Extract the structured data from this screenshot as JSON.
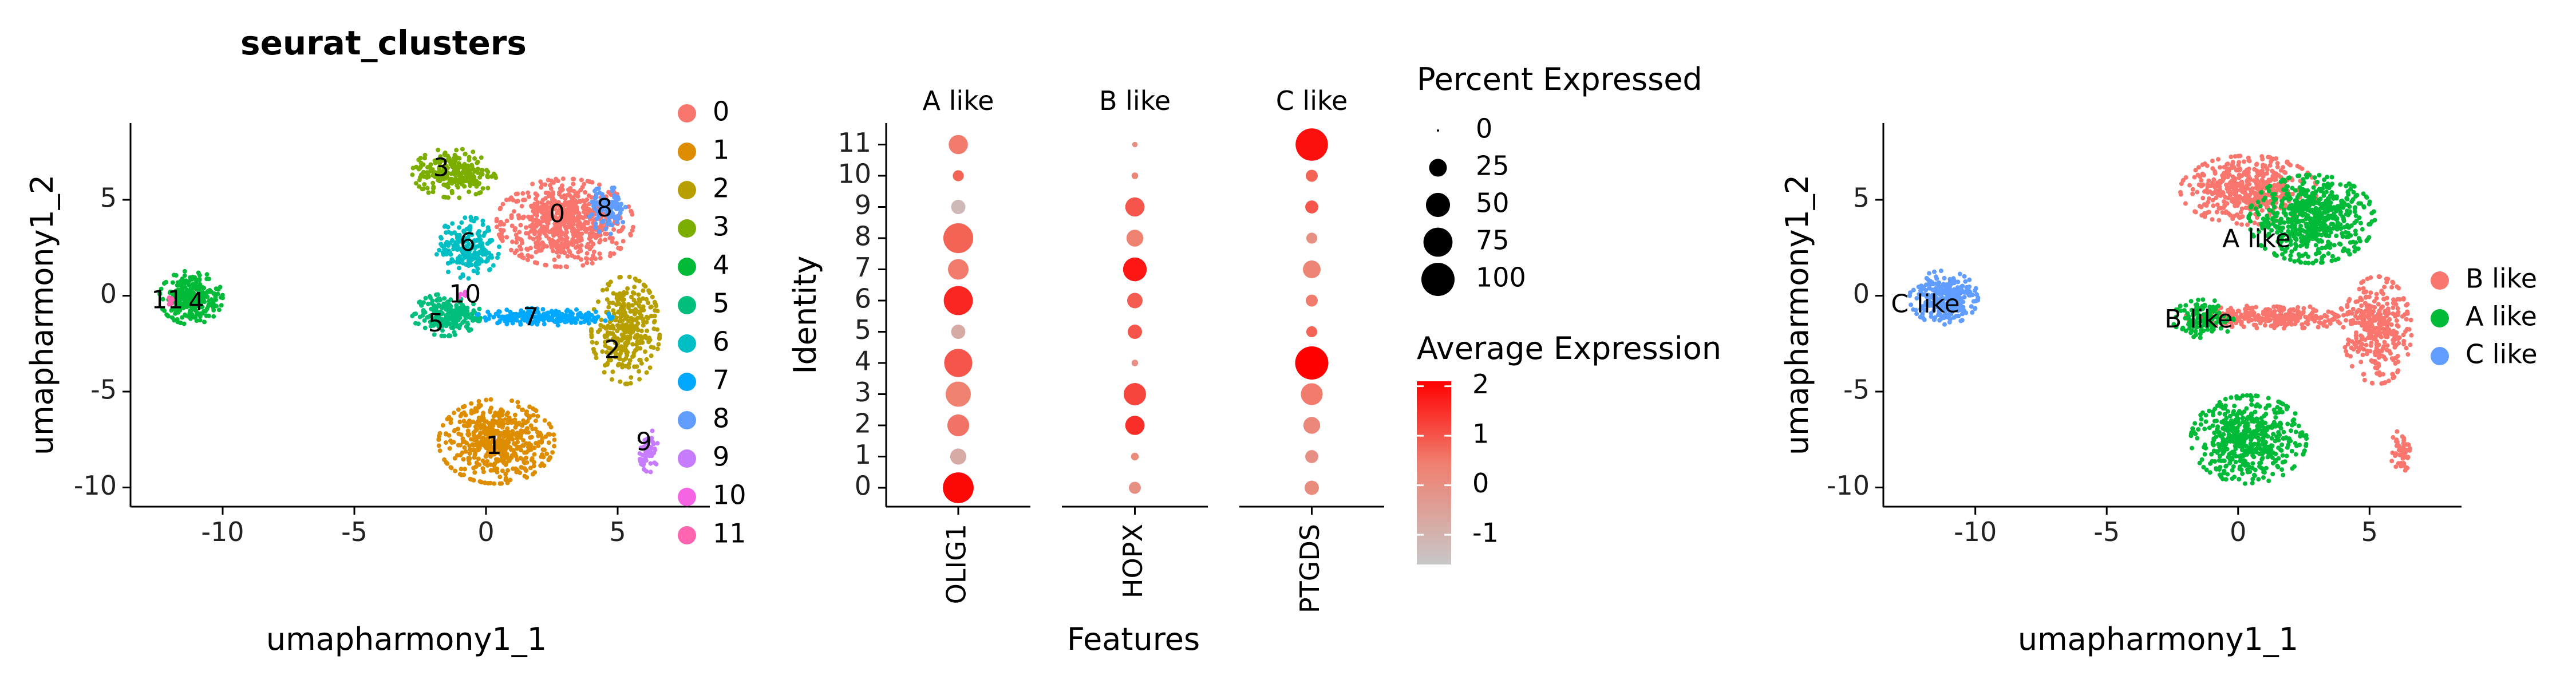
{
  "chart_data": [
    {
      "type": "scatter",
      "title": "seurat_clusters",
      "xlabel": "umapharmony1_1",
      "ylabel": "umapharmony1_2",
      "xlim": [
        -13.5,
        8.5
      ],
      "ylim": [
        -11,
        9
      ],
      "x_ticks": [
        -10,
        -5,
        0,
        5
      ],
      "y_ticks": [
        -10,
        -5,
        0,
        5
      ],
      "legend_position": "right",
      "legend_title": "",
      "clusters": [
        {
          "name": "0",
          "color": "#F8766D",
          "label_pos": [
            2.7,
            4.2
          ],
          "blobs": [
            {
              "cx": 3.0,
              "cy": 3.8,
              "rx": 2.6,
              "ry": 2.3,
              "n": 700
            }
          ]
        },
        {
          "name": "1",
          "color": "#DE8C00",
          "label_pos": [
            0.3,
            -7.9
          ],
          "blobs": [
            {
              "cx": 0.4,
              "cy": -7.6,
              "rx": 2.2,
              "ry": 2.2,
              "n": 520
            }
          ]
        },
        {
          "name": "2",
          "color": "#B79F00",
          "label_pos": [
            4.8,
            -2.9
          ],
          "blobs": [
            {
              "cx": 5.3,
              "cy": -1.8,
              "rx": 1.3,
              "ry": 2.8,
              "n": 340
            }
          ]
        },
        {
          "name": "3",
          "color": "#7CAE00",
          "label_pos": [
            -1.7,
            6.6
          ],
          "blobs": [
            {
              "cx": -1.2,
              "cy": 6.4,
              "rx": 1.6,
              "ry": 1.3,
              "n": 240
            }
          ]
        },
        {
          "name": "4",
          "color": "#00BA38",
          "label_pos": [
            -11.0,
            -0.4
          ],
          "blobs": [
            {
              "cx": -11.2,
              "cy": -0.1,
              "rx": 1.2,
              "ry": 1.4,
              "n": 260
            }
          ]
        },
        {
          "name": "5",
          "color": "#00BF7D",
          "label_pos": [
            -1.9,
            -1.5
          ],
          "blobs": [
            {
              "cx": -1.5,
              "cy": -1.0,
              "rx": 1.3,
              "ry": 1.1,
              "n": 200
            }
          ]
        },
        {
          "name": "6",
          "color": "#00BFC4",
          "label_pos": [
            -0.7,
            2.7
          ],
          "blobs": [
            {
              "cx": -0.7,
              "cy": 2.5,
              "rx": 1.2,
              "ry": 1.6,
              "n": 200
            }
          ]
        },
        {
          "name": "7",
          "color": "#00A9FF",
          "label_pos": [
            1.7,
            -1.2
          ],
          "blobs": [
            {
              "cx": 2.2,
              "cy": -1.1,
              "rx": 2.6,
              "ry": 0.45,
              "n": 200
            }
          ]
        },
        {
          "name": "8",
          "color": "#619CFF",
          "label_pos": [
            4.5,
            4.5
          ],
          "blobs": [
            {
              "cx": 4.6,
              "cy": 4.5,
              "rx": 0.7,
              "ry": 1.3,
              "n": 100
            }
          ]
        },
        {
          "name": "9",
          "color": "#C77CFF",
          "label_pos": [
            6.0,
            -7.7
          ],
          "blobs": [
            {
              "cx": 6.2,
              "cy": -8.1,
              "rx": 0.4,
              "ry": 1.1,
              "n": 50
            }
          ]
        },
        {
          "name": "10",
          "color": "#F564E3",
          "label_pos": [
            -0.8,
            0.0
          ],
          "blobs": [
            {
              "cx": -0.8,
              "cy": 0.0,
              "rx": 0.25,
              "ry": 0.2,
              "n": 8
            }
          ]
        },
        {
          "name": "11",
          "color": "#FF64B0",
          "label_pos": [
            -12.1,
            -0.3
          ],
          "blobs": [
            {
              "cx": -12.0,
              "cy": -0.3,
              "rx": 0.25,
              "ry": 0.2,
              "n": 8
            }
          ]
        }
      ]
    },
    {
      "type": "dot",
      "xlabel": "Features",
      "ylabel": "Identity",
      "facets": [
        "A like",
        "B like",
        "C like"
      ],
      "features": [
        "OLIG1",
        "HOPX",
        "PTGDS"
      ],
      "identities": [
        "0",
        "1",
        "2",
        "3",
        "4",
        "5",
        "6",
        "7",
        "8",
        "9",
        "10",
        "11"
      ],
      "percent_expressed": [
        [
          85,
          10,
          15
        ],
        [
          20,
          3,
          12
        ],
        [
          40,
          30,
          22
        ],
        [
          55,
          42,
          40
        ],
        [
          70,
          2,
          100
        ],
        [
          15,
          15,
          8
        ],
        [
          75,
          18,
          10
        ],
        [
          35,
          48,
          25
        ],
        [
          80,
          22,
          8
        ],
        [
          15,
          30,
          12
        ],
        [
          8,
          2,
          10
        ],
        [
          30,
          1,
          95
        ]
      ],
      "average_expression": [
        [
          2.0,
          0.0,
          0.1
        ],
        [
          -0.8,
          0.1,
          0.0
        ],
        [
          0.6,
          1.5,
          0.2
        ],
        [
          0.4,
          1.2,
          0.5
        ],
        [
          1.0,
          0.0,
          2.1
        ],
        [
          -0.8,
          1.0,
          0.8
        ],
        [
          1.6,
          0.9,
          0.5
        ],
        [
          0.5,
          1.8,
          0.3
        ],
        [
          0.8,
          0.4,
          0.0
        ],
        [
          -1.2,
          1.0,
          1.0
        ],
        [
          0.8,
          0.3,
          0.8
        ],
        [
          0.5,
          0.0,
          1.9
        ]
      ],
      "legend_size": {
        "title": "Percent Expressed",
        "values": [
          0,
          25,
          50,
          75,
          100
        ]
      },
      "legend_color": {
        "title": "Average Expression",
        "ticks": [
          2,
          1,
          0,
          -1
        ],
        "range": [
          -1.6,
          2.1
        ],
        "low_color": "#C7C7C7",
        "high_color": "#FF0000"
      }
    },
    {
      "type": "scatter",
      "xlabel": "umapharmony1_1",
      "ylabel": "umapharmony1_2",
      "xlim": [
        -13.5,
        8.5
      ],
      "ylim": [
        -11,
        9
      ],
      "x_ticks": [
        -10,
        -5,
        0,
        5
      ],
      "y_ticks": [
        -10,
        -5,
        0,
        5
      ],
      "legend_position": "right",
      "groups": [
        {
          "name": "B like",
          "color": "#F8766D",
          "label_pos": [
            -1.5,
            -1.3
          ],
          "blobs": [
            {
              "cx": 0.4,
              "cy": 5.5,
              "rx": 2.6,
              "ry": 1.8,
              "n": 500
            },
            {
              "cx": 5.3,
              "cy": -1.8,
              "rx": 1.3,
              "ry": 2.8,
              "n": 340
            },
            {
              "cx": 1.5,
              "cy": -1.1,
              "rx": 3.5,
              "ry": 0.6,
              "n": 300
            },
            {
              "cx": 6.2,
              "cy": -8.1,
              "rx": 0.4,
              "ry": 1.1,
              "n": 50
            }
          ]
        },
        {
          "name": "A like",
          "color": "#00BA38",
          "label_pos": [
            0.7,
            2.9
          ],
          "blobs": [
            {
              "cx": 2.8,
              "cy": 4.0,
              "rx": 2.4,
              "ry": 2.3,
              "n": 650
            },
            {
              "cx": 0.4,
              "cy": -7.5,
              "rx": 2.2,
              "ry": 2.3,
              "n": 520
            },
            {
              "cx": -1.3,
              "cy": -1.2,
              "rx": 1.2,
              "ry": 1.0,
              "n": 120
            }
          ]
        },
        {
          "name": "C like",
          "color": "#619CFF",
          "label_pos": [
            -11.9,
            -0.5
          ],
          "blobs": [
            {
              "cx": -11.2,
              "cy": -0.1,
              "rx": 1.3,
              "ry": 1.4,
              "n": 280
            }
          ]
        }
      ]
    }
  ]
}
